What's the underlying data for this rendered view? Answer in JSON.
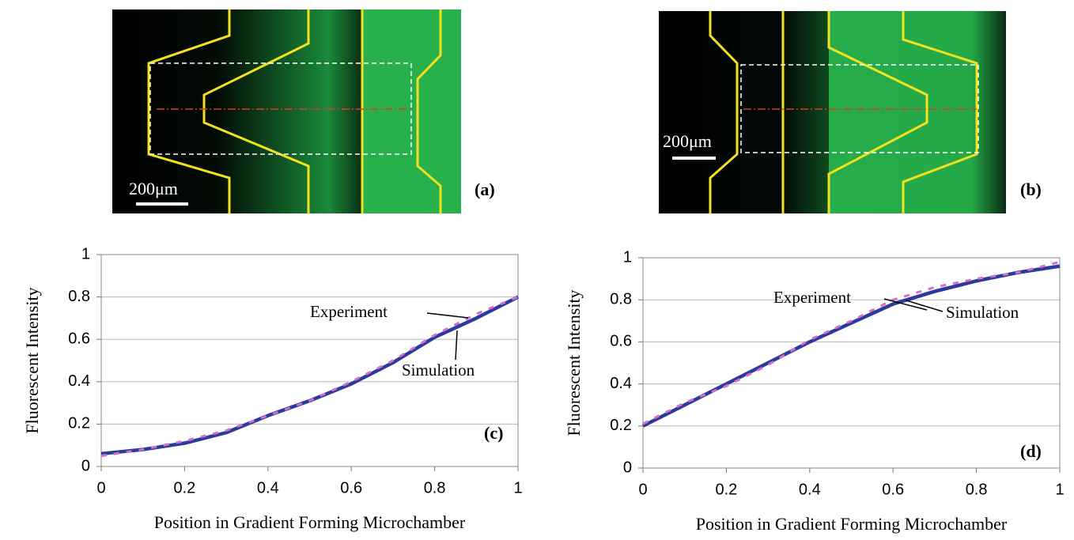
{
  "images": [
    {
      "scale_bar": "200μm",
      "label": "(a)"
    },
    {
      "scale_bar": "200μm",
      "label": "(b)"
    }
  ],
  "chart_data": [
    {
      "type": "line",
      "panel_label": "(c)",
      "x_label": "Position in Gradient Forming Microchamber",
      "y_label": "Fluorescent Intensity",
      "x": [
        0,
        0.1,
        0.2,
        0.3,
        0.4,
        0.5,
        0.6,
        0.7,
        0.8,
        0.9,
        1
      ],
      "series": [
        {
          "name": "Simulation",
          "color": "#2b3a9c",
          "values": [
            0.06,
            0.08,
            0.11,
            0.16,
            0.24,
            0.31,
            0.39,
            0.49,
            0.61,
            0.7,
            0.8
          ]
        },
        {
          "name": "Experiment",
          "color": "#d46ec6",
          "values": [
            0.05,
            0.08,
            0.12,
            0.17,
            0.24,
            0.31,
            0.4,
            0.5,
            0.62,
            0.72,
            0.8
          ]
        }
      ],
      "xlim": [
        0,
        1
      ],
      "ylim": [
        0,
        1
      ],
      "xticks": [
        0,
        0.2,
        0.4,
        0.6,
        0.8,
        1
      ],
      "yticks": [
        0,
        0.2,
        0.4,
        0.6,
        0.8,
        1
      ],
      "grid": true,
      "annotations": [
        {
          "text": "Experiment"
        },
        {
          "text": "Simulation"
        }
      ]
    },
    {
      "type": "line",
      "panel_label": "(d)",
      "x_label": "Position in Gradient Forming Microchamber",
      "y_label": "Fluorescent Intensity",
      "x": [
        0,
        0.1,
        0.2,
        0.3,
        0.4,
        0.5,
        0.6,
        0.7,
        0.8,
        0.9,
        1
      ],
      "series": [
        {
          "name": "Simulation",
          "color": "#2b3a9c",
          "values": [
            0.2,
            0.3,
            0.4,
            0.5,
            0.6,
            0.69,
            0.78,
            0.84,
            0.89,
            0.93,
            0.96
          ]
        },
        {
          "name": "Experiment",
          "color": "#d46ec6",
          "values": [
            0.21,
            0.31,
            0.39,
            0.49,
            0.61,
            0.7,
            0.8,
            0.86,
            0.9,
            0.93,
            0.98
          ]
        }
      ],
      "xlim": [
        0,
        1
      ],
      "ylim": [
        0,
        1
      ],
      "xticks": [
        0,
        0.2,
        0.4,
        0.6,
        0.8,
        1
      ],
      "yticks": [
        0,
        0.2,
        0.4,
        0.6,
        0.8,
        1
      ],
      "grid": true,
      "annotations": [
        {
          "text": "Experiment"
        },
        {
          "text": "Simulation"
        }
      ]
    }
  ]
}
